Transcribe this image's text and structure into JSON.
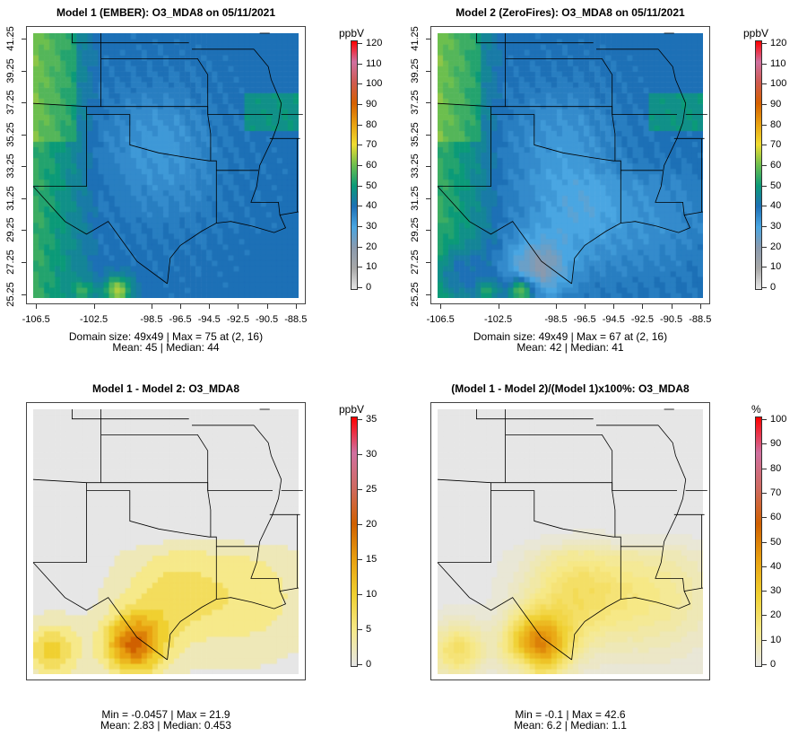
{
  "panels": [
    {
      "title": "Model 1 (EMBER): O3_MDA8 on 05/11/2021",
      "unit": "ppbV",
      "scale": "abs",
      "field": "m1",
      "cb_ticks": [
        "0",
        "10",
        "20",
        "30",
        "40",
        "50",
        "60",
        "70",
        "80",
        "90",
        "100",
        "110",
        "120"
      ],
      "stats_line1": "Domain size: 49x49 | Max = 75 at (2, 16)",
      "stats_line2": "Mean: 45 |  Median: 44"
    },
    {
      "title": "Model 2 (ZeroFires): O3_MDA8 on 05/11/2021",
      "unit": "ppbV",
      "scale": "abs",
      "field": "m2",
      "cb_ticks": [
        "0",
        "10",
        "20",
        "30",
        "40",
        "50",
        "60",
        "70",
        "80",
        "90",
        "100",
        "110",
        "120"
      ],
      "stats_line1": "Domain size: 49x49 | Max = 67 at (2, 16)",
      "stats_line2": "Mean: 42 |  Median: 41"
    },
    {
      "title": "Model 1 - Model 2: O3_MDA8",
      "unit": "ppbV",
      "scale": "diff",
      "field": "d",
      "cb_ticks": [
        "0",
        "5",
        "10",
        "15",
        "20",
        "25",
        "30",
        "35"
      ],
      "stats_line1": "Min = -0.0457 | Max = 21.9",
      "stats_line2": "Mean: 2.83 |  Median: 0.453"
    },
    {
      "title": "(Model 1 - Model 2)/(Model 1)x100%: O3_MDA8",
      "unit": "%",
      "scale": "pct",
      "field": "p",
      "cb_ticks": [
        "0",
        "10",
        "20",
        "30",
        "40",
        "50",
        "60",
        "70",
        "80",
        "90",
        "100"
      ],
      "stats_line1": "Min = -0.1 | Max = 42.6",
      "stats_line2": "Mean: 6.2 |  Median: 1.1"
    }
  ],
  "x_ticks": [
    "-106.5",
    "-102.5",
    "-98.5",
    "-96.5",
    "-94.5",
    "-92.5",
    "-90.5",
    "-88.5"
  ],
  "y_ticks": [
    "25.25",
    "27.25",
    "29.25",
    "31.25",
    "33.25",
    "35.25",
    "37.25",
    "39.25",
    "41.25"
  ],
  "colors": {
    "abs": [
      "#e6e6e6",
      "#a8a8a8",
      "#8a9aae",
      "#4aa6e2",
      "#1d70b6",
      "#0b9a78",
      "#6cbf4e",
      "#f0dc30",
      "#e8a010",
      "#d66000",
      "#cf5a50",
      "#d070a0",
      "#ff0000"
    ],
    "diff": [
      "#e6e6e6",
      "#f6e98a",
      "#f0d030",
      "#e8a010",
      "#d06000",
      "#cf6a60",
      "#d070a0",
      "#ff0000"
    ]
  }
}
